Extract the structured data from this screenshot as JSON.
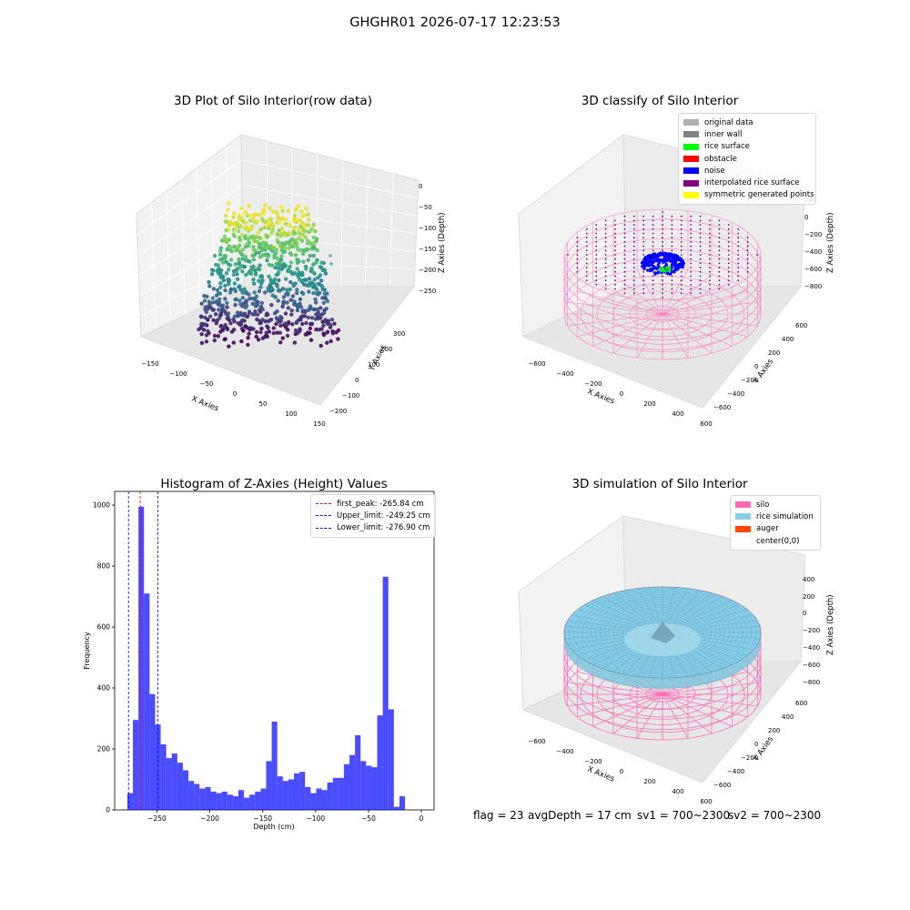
{
  "figure": {
    "suptitle": "GHGHR01 2026-07-17 12:23:53",
    "footer": {
      "flag": "flag = 23",
      "avg_depth": "avgDepth = 17 cm",
      "sv1": "sv1 = 700~2300",
      "sv2": "sv2 = 700~2300"
    }
  },
  "chart_data": [
    {
      "type": "scatter",
      "title": "3D Plot of Silo Interior(row data)",
      "xlabel": "X Axies",
      "ylabel": "Y Axies",
      "zlabel": "Z Axies (Depth)",
      "x_ticks": [
        "−150",
        "−100",
        "−50",
        "0",
        "50",
        "100",
        "150"
      ],
      "y_ticks": [
        "−200",
        "−100",
        "0",
        "100",
        "200",
        "300"
      ],
      "z_ticks": [
        "0",
        "−50",
        "−100",
        "−150",
        "−200",
        "−250"
      ],
      "xlim": [
        -170,
        170
      ],
      "ylim": [
        -220,
        330
      ],
      "zlim": [
        -285,
        10
      ],
      "colormap": "viridis"
    },
    {
      "type": "scatter",
      "title": "3D classify of Silo Interior",
      "xlabel": "X Axies",
      "ylabel": "Y Axies",
      "zlabel": "Z Axies (Depth)",
      "x_ticks": [
        "−600",
        "−400",
        "−200",
        "0",
        "200",
        "400",
        "600"
      ],
      "y_ticks": [
        "−600",
        "−400",
        "−200",
        "0",
        "200",
        "400",
        "600"
      ],
      "z_ticks": [
        "200",
        "0",
        "−200",
        "−400",
        "−600",
        "−800"
      ],
      "legend": [
        {
          "label": "original data",
          "color": "#b0b0b0"
        },
        {
          "label": "inner wall",
          "color": "#808080"
        },
        {
          "label": "rice surface",
          "color": "#00ff00"
        },
        {
          "label": "obstacle",
          "color": "#ff0000"
        },
        {
          "label": "noise",
          "color": "#0000ff"
        },
        {
          "label": "interpolated rice surface",
          "color": "#800080"
        },
        {
          "label": "symmetric generated points",
          "color": "#ffff00"
        }
      ],
      "legend_position": "top-right"
    },
    {
      "type": "bar",
      "title": "Histogram of Z-Axies (Height) Values",
      "xlabel": "Depth (cm)",
      "ylabel": "Frequency",
      "xlim": [
        -290,
        12
      ],
      "ylim": [
        0,
        1045
      ],
      "x_ticks": [
        -250,
        -200,
        -150,
        -100,
        -50,
        0
      ],
      "y_ticks": [
        0,
        200,
        400,
        600,
        800,
        1000
      ],
      "bin_start": -278,
      "bin_width": 5.25,
      "values": [
        55,
        295,
        995,
        710,
        380,
        280,
        215,
        170,
        185,
        155,
        130,
        95,
        85,
        70,
        75,
        60,
        55,
        60,
        50,
        45,
        65,
        40,
        50,
        60,
        70,
        160,
        290,
        110,
        95,
        100,
        120,
        125,
        75,
        55,
        70,
        65,
        90,
        105,
        105,
        150,
        180,
        245,
        160,
        145,
        140,
        310,
        765,
        330,
        10,
        45
      ],
      "bar_color": "#0000ff",
      "vlines": [
        {
          "label": "first_peak: -265.84 cm",
          "x": -265.84,
          "color": "#ff0000"
        },
        {
          "label": "Upper_limit: -249.25 cm",
          "x": -249.25,
          "color": "#0000ff"
        },
        {
          "label": "Lower_limit: -276.90 cm",
          "x": -276.9,
          "color": "#0000ff"
        }
      ],
      "legend_position": "top-right"
    },
    {
      "type": "surface",
      "title": "3D simulation of Silo Interior",
      "xlabel": "X Axies",
      "ylabel": "Y Axies",
      "zlabel": "Z Axies (Depth)",
      "x_ticks": [
        "−600",
        "−400",
        "−200",
        "0",
        "200",
        "400",
        "600"
      ],
      "y_ticks": [
        "−600",
        "−400",
        "−200",
        "0",
        "200",
        "400",
        "600"
      ],
      "z_ticks": [
        "200",
        "0",
        "−200",
        "−400",
        "−600",
        "−800",
        "400"
      ],
      "legend": [
        {
          "label": "silo",
          "color": "#ff69b4"
        },
        {
          "label": "rice simulation",
          "color": "#87ceeb"
        },
        {
          "label": "auger",
          "color": "#ff4500"
        },
        {
          "label": "center(0,0)",
          "color": "#ffffff"
        }
      ],
      "legend_position": "top-right"
    }
  ]
}
